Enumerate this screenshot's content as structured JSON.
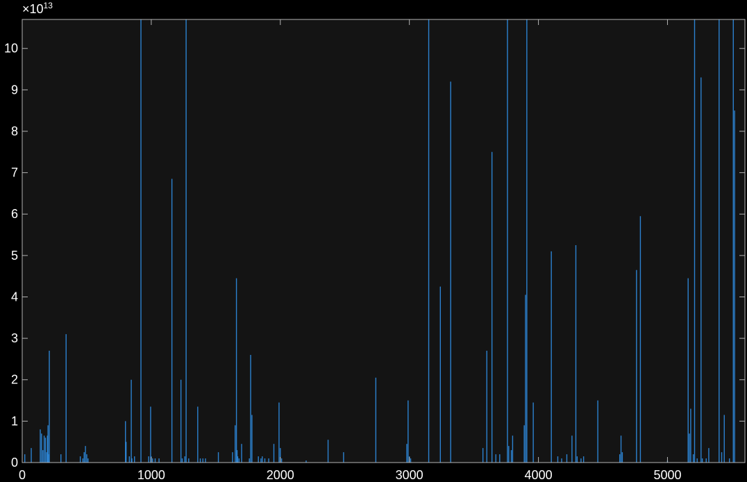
{
  "chart_data": {
    "type": "bar",
    "title": "",
    "xlabel": "",
    "ylabel": "",
    "xlim": [
      0,
      5600
    ],
    "ylim": [
      0,
      10.7
    ],
    "y_scale_exponent": "×10",
    "y_scale_power": "13",
    "x_ticks": [
      0,
      1000,
      2000,
      3000,
      4000,
      5000
    ],
    "y_ticks": [
      0,
      1,
      2,
      3,
      4,
      5,
      6,
      7,
      8,
      9,
      10
    ],
    "grid": false,
    "colors": {
      "background": "#000000",
      "axes_bg": "#141414",
      "axis": "#b4b4b4",
      "series": "#2c82d0",
      "text": "#ffffff"
    },
    "series": [
      {
        "x": [
          20,
          70,
          140,
          150,
          160,
          170,
          180,
          190,
          195,
          200,
          205,
          210,
          300,
          340,
          450,
          470,
          480,
          490,
          500,
          510,
          800,
          805,
          830,
          845,
          850,
          870,
          920,
          980,
          995,
          1000,
          1010,
          1030,
          1060,
          1160,
          1230,
          1240,
          1260,
          1270,
          1290,
          1360,
          1380,
          1400,
          1420,
          1520,
          1630,
          1650,
          1660,
          1665,
          1670,
          1680,
          1700,
          1760,
          1770,
          1780,
          1830,
          1850,
          1860,
          1880,
          1910,
          1950,
          1990,
          2000,
          2010,
          2200,
          2370,
          2490,
          2740,
          2980,
          2990,
          3000,
          3010,
          3150,
          3240,
          3320,
          3570,
          3600,
          3640,
          3670,
          3700,
          3760,
          3770,
          3790,
          3800,
          3890,
          3900,
          3910,
          3960,
          4100,
          4150,
          4180,
          4220,
          4260,
          4290,
          4300,
          4330,
          4350,
          4460,
          4630,
          4640,
          4650,
          4760,
          4790,
          5000,
          5160,
          5170,
          5180,
          5200,
          5210,
          5230,
          5260,
          5270,
          5300,
          5320,
          5400,
          5420,
          5440,
          5480,
          5510,
          5520
        ],
        "values": [
          0.2,
          0.35,
          0.8,
          0.7,
          0.3,
          0.65,
          0.6,
          0.25,
          0.65,
          0.9,
          0.2,
          2.7,
          0.2,
          3.1,
          0.15,
          0.1,
          0.25,
          0.4,
          0.2,
          0.1,
          1.0,
          0.5,
          0.15,
          2.0,
          0.1,
          0.15,
          10.7,
          0.15,
          1.35,
          0.15,
          0.1,
          0.1,
          0.1,
          6.85,
          2.0,
          0.1,
          0.15,
          10.7,
          0.1,
          1.35,
          0.1,
          0.1,
          0.1,
          0.25,
          0.25,
          0.9,
          4.45,
          0.3,
          0.15,
          0.1,
          0.45,
          0.1,
          2.6,
          1.15,
          0.15,
          0.1,
          0.15,
          0.1,
          0.1,
          0.45,
          1.45,
          0.35,
          0.1,
          0.05,
          0.55,
          0.25,
          2.05,
          0.45,
          1.5,
          0.15,
          0.1,
          10.7,
          4.25,
          9.2,
          0.35,
          2.7,
          7.5,
          0.2,
          0.2,
          10.7,
          0.4,
          0.3,
          0.65,
          0.9,
          4.05,
          10.7,
          1.45,
          5.1,
          0.15,
          0.1,
          0.2,
          0.65,
          5.25,
          0.15,
          0.1,
          0.15,
          1.5,
          0.2,
          0.65,
          0.25,
          4.65,
          5.95,
          0.05,
          4.45,
          0.7,
          1.3,
          0.2,
          10.7,
          0.1,
          9.3,
          0.1,
          0.1,
          0.35,
          10.7,
          0.25,
          1.15,
          0.1,
          10.7,
          8.5
        ]
      }
    ]
  }
}
